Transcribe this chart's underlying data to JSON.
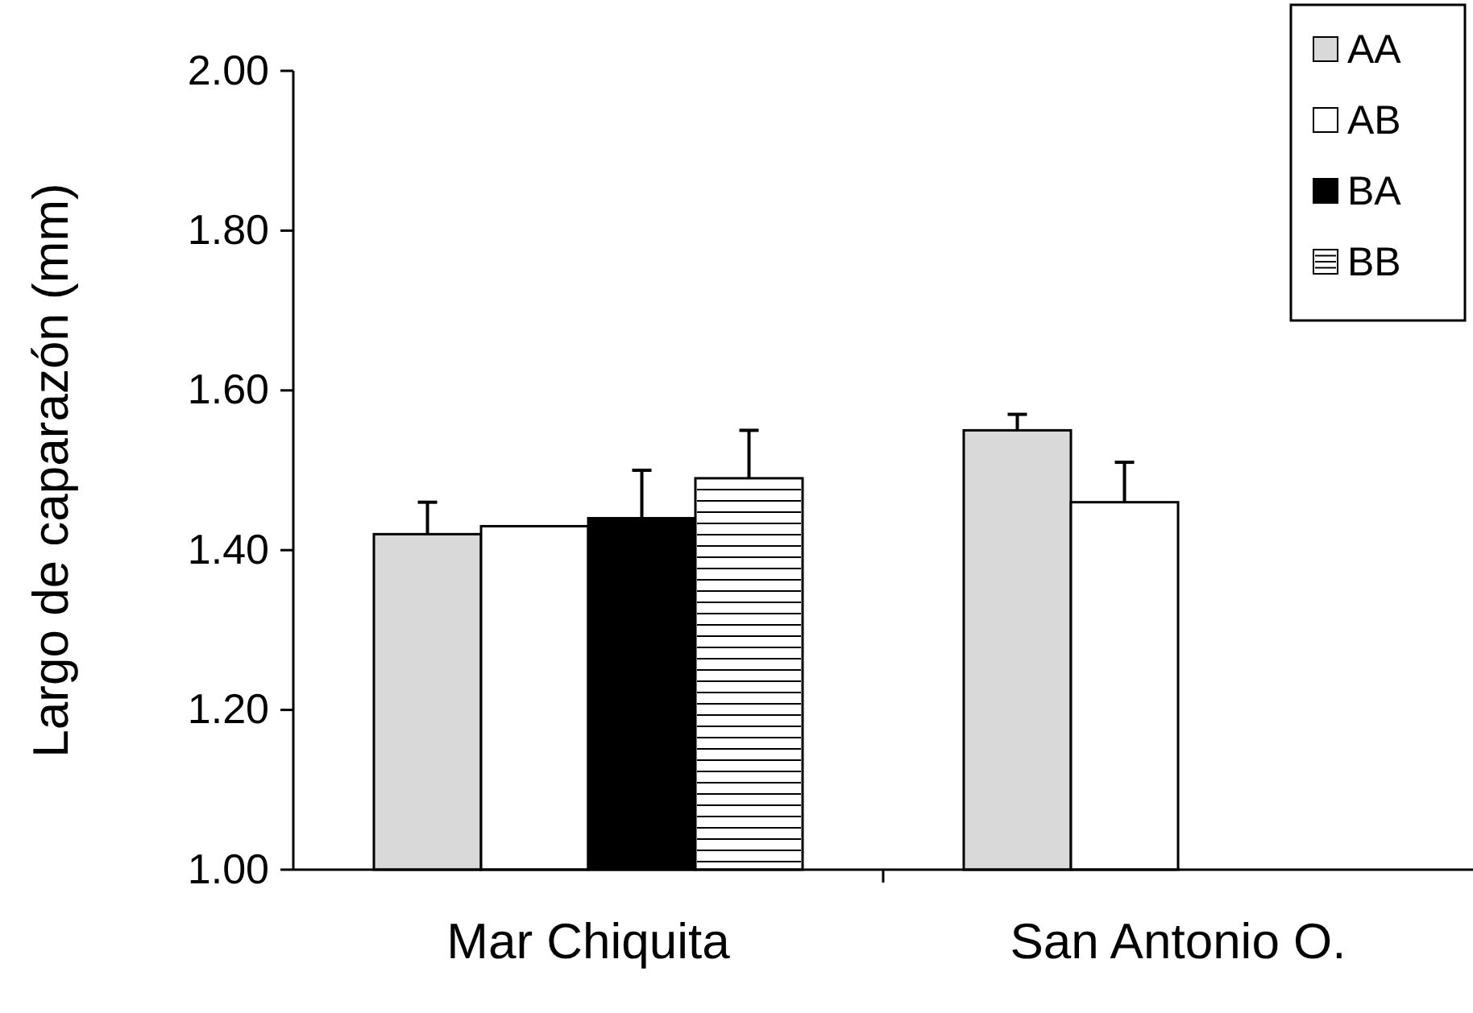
{
  "chart_data": {
    "type": "bar",
    "ylabel": "Largo de caparazón (mm)",
    "categories": [
      "Mar Chiquita",
      "San Antonio O."
    ],
    "series": [
      {
        "name": "AA",
        "color": "#d9d9d9",
        "values": [
          1.42,
          1.55
        ],
        "errors": [
          0.04,
          0.02
        ]
      },
      {
        "name": "AB",
        "color": "#ffffff",
        "values": [
          1.43,
          1.46
        ],
        "errors": [
          null,
          0.05
        ]
      },
      {
        "name": "BA",
        "color": "#000000",
        "values": [
          1.44,
          null
        ],
        "errors": [
          0.06,
          null
        ]
      },
      {
        "name": "BB",
        "color": "#ffffff",
        "values": [
          1.49,
          null
        ],
        "errors": [
          0.06,
          null
        ]
      }
    ],
    "ylim": [
      1,
      2
    ],
    "yticks": [
      {
        "value": 1,
        "label": "1.00"
      },
      {
        "value": 1.2,
        "label": "1.20"
      },
      {
        "value": 1.4,
        "label": "1.40"
      },
      {
        "value": 1.6,
        "label": "1.60"
      },
      {
        "value": 1.8,
        "label": "1.80"
      },
      {
        "value": 2,
        "label": "2.00"
      }
    ],
    "grid": false,
    "legend": "top right"
  }
}
